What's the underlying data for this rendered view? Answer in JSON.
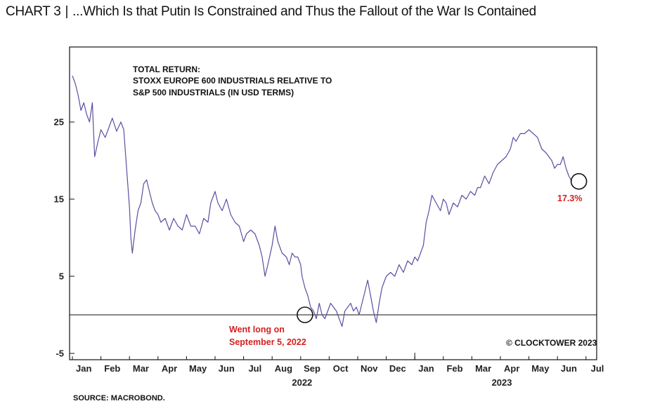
{
  "header": {
    "tag": "CHART 3",
    "separator": "|",
    "title": "...Which Is that Putin Is Constrained and Thus the Fallout of the War Is Contained"
  },
  "footer": {
    "source": "SOURCE: MACROBOND."
  },
  "colors": {
    "line": "#5b4fa3",
    "highlight": "#d61f1f",
    "frame": "#111111"
  },
  "chart_data": {
    "type": "line",
    "title_lines": [
      "TOTAL RETURN:",
      "STOXX EUROPE 600 INDUSTRIALS RELATIVE TO",
      "S&P 500 INDUSTRIALS (IN USD TERMS)"
    ],
    "copyright": "© CLOCKTOWER 2023",
    "x_ticks": [
      "Jan",
      "Feb",
      "Mar",
      "Apr",
      "May",
      "Jun",
      "Jul",
      "Aug",
      "Sep",
      "Oct",
      "Nov",
      "Dec",
      "Jan",
      "Feb",
      "Mar",
      "Apr",
      "May",
      "Jun",
      "Jul"
    ],
    "year_labels": [
      "2022",
      "2023"
    ],
    "y_ticks": [
      -5,
      5,
      15,
      25
    ],
    "ylim": [
      -5.8,
      30
    ],
    "xlim": [
      0,
      18.6
    ],
    "baseline": 0,
    "grid": false,
    "annotations": [
      {
        "text_lines": [
          "Went long on",
          "September 5, 2022"
        ],
        "x": 8.15,
        "y": 0
      },
      {
        "text": "17.3%",
        "x": 17.75,
        "y": 17.3
      }
    ],
    "series": [
      {
        "values": [
          [
            0.0,
            31.0
          ],
          [
            0.1,
            30.0
          ],
          [
            0.2,
            28.5
          ],
          [
            0.3,
            26.5
          ],
          [
            0.4,
            27.5
          ],
          [
            0.5,
            26.0
          ],
          [
            0.6,
            25.0
          ],
          [
            0.7,
            27.5
          ],
          [
            0.78,
            20.5
          ],
          [
            0.9,
            22.5
          ],
          [
            1.0,
            24.0
          ],
          [
            1.15,
            23.0
          ],
          [
            1.3,
            24.5
          ],
          [
            1.4,
            25.5
          ],
          [
            1.55,
            23.8
          ],
          [
            1.7,
            25.0
          ],
          [
            1.8,
            24.0
          ],
          [
            1.9,
            19.0
          ],
          [
            2.0,
            14.0
          ],
          [
            2.05,
            10.0
          ],
          [
            2.1,
            8.0
          ],
          [
            2.2,
            11.0
          ],
          [
            2.3,
            13.5
          ],
          [
            2.4,
            14.5
          ],
          [
            2.5,
            17.0
          ],
          [
            2.6,
            17.5
          ],
          [
            2.7,
            16.0
          ],
          [
            2.8,
            14.5
          ],
          [
            2.9,
            13.5
          ],
          [
            3.0,
            13.0
          ],
          [
            3.1,
            12.0
          ],
          [
            3.25,
            12.5
          ],
          [
            3.4,
            11.0
          ],
          [
            3.55,
            12.5
          ],
          [
            3.7,
            11.5
          ],
          [
            3.85,
            11.0
          ],
          [
            4.0,
            13.0
          ],
          [
            4.15,
            11.5
          ],
          [
            4.3,
            11.5
          ],
          [
            4.45,
            10.5
          ],
          [
            4.6,
            12.5
          ],
          [
            4.75,
            12.0
          ],
          [
            4.85,
            14.5
          ],
          [
            5.0,
            16.0
          ],
          [
            5.1,
            14.5
          ],
          [
            5.25,
            13.5
          ],
          [
            5.4,
            15.0
          ],
          [
            5.55,
            13.0
          ],
          [
            5.7,
            12.0
          ],
          [
            5.85,
            11.5
          ],
          [
            6.0,
            9.5
          ],
          [
            6.1,
            10.5
          ],
          [
            6.25,
            11.0
          ],
          [
            6.4,
            10.5
          ],
          [
            6.55,
            9.0
          ],
          [
            6.65,
            7.5
          ],
          [
            6.75,
            5.0
          ],
          [
            6.85,
            6.5
          ],
          [
            7.0,
            9.0
          ],
          [
            7.1,
            11.5
          ],
          [
            7.2,
            9.5
          ],
          [
            7.35,
            8.0
          ],
          [
            7.5,
            7.5
          ],
          [
            7.6,
            6.5
          ],
          [
            7.7,
            8.0
          ],
          [
            7.8,
            7.5
          ],
          [
            7.9,
            7.5
          ],
          [
            8.0,
            6.5
          ],
          [
            8.05,
            5.0
          ],
          [
            8.15,
            3.5
          ],
          [
            8.25,
            2.5
          ],
          [
            8.35,
            1.0
          ],
          [
            8.45,
            0.5
          ],
          [
            8.55,
            -0.5
          ],
          [
            8.65,
            1.5
          ],
          [
            8.75,
            0.0
          ],
          [
            8.85,
            -0.5
          ],
          [
            8.95,
            0.5
          ],
          [
            9.05,
            1.5
          ],
          [
            9.15,
            1.0
          ],
          [
            9.25,
            0.5
          ],
          [
            9.35,
            -0.5
          ],
          [
            9.45,
            -1.5
          ],
          [
            9.55,
            0.5
          ],
          [
            9.65,
            1.0
          ],
          [
            9.75,
            1.5
          ],
          [
            9.85,
            0.5
          ],
          [
            9.95,
            1.0
          ],
          [
            10.05,
            0.0
          ],
          [
            10.15,
            1.5
          ],
          [
            10.25,
            3.0
          ],
          [
            10.35,
            4.5
          ],
          [
            10.45,
            2.5
          ],
          [
            10.55,
            0.5
          ],
          [
            10.65,
            -1.0
          ],
          [
            10.75,
            1.5
          ],
          [
            10.85,
            3.5
          ],
          [
            11.0,
            5.0
          ],
          [
            11.15,
            5.5
          ],
          [
            11.3,
            5.0
          ],
          [
            11.45,
            6.5
          ],
          [
            11.6,
            5.5
          ],
          [
            11.75,
            7.0
          ],
          [
            11.9,
            6.5
          ],
          [
            12.0,
            7.5
          ],
          [
            12.1,
            7.0
          ],
          [
            12.2,
            8.0
          ],
          [
            12.3,
            9.0
          ],
          [
            12.4,
            12.0
          ],
          [
            12.5,
            13.5
          ],
          [
            12.6,
            15.5
          ],
          [
            12.75,
            14.5
          ],
          [
            12.9,
            13.5
          ],
          [
            13.0,
            15.0
          ],
          [
            13.1,
            14.5
          ],
          [
            13.2,
            13.0
          ],
          [
            13.35,
            14.5
          ],
          [
            13.5,
            14.0
          ],
          [
            13.65,
            15.5
          ],
          [
            13.8,
            15.0
          ],
          [
            13.95,
            16.0
          ],
          [
            14.1,
            15.5
          ],
          [
            14.2,
            16.5
          ],
          [
            14.3,
            16.5
          ],
          [
            14.45,
            18.0
          ],
          [
            14.6,
            17.0
          ],
          [
            14.75,
            18.5
          ],
          [
            14.9,
            19.5
          ],
          [
            15.05,
            20.0
          ],
          [
            15.2,
            20.5
          ],
          [
            15.35,
            21.5
          ],
          [
            15.45,
            23.0
          ],
          [
            15.55,
            22.5
          ],
          [
            15.7,
            23.5
          ],
          [
            15.85,
            23.5
          ],
          [
            16.0,
            24.0
          ],
          [
            16.15,
            23.5
          ],
          [
            16.3,
            23.0
          ],
          [
            16.45,
            21.5
          ],
          [
            16.6,
            21.0
          ],
          [
            16.7,
            20.5
          ],
          [
            16.8,
            20.0
          ],
          [
            16.9,
            19.0
          ],
          [
            17.0,
            19.5
          ],
          [
            17.1,
            19.5
          ],
          [
            17.2,
            20.5
          ],
          [
            17.3,
            19.0
          ],
          [
            17.4,
            18.0
          ],
          [
            17.5,
            17.3
          ]
        ]
      }
    ]
  }
}
